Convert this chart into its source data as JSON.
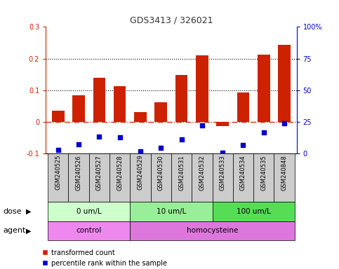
{
  "title": "GDS3413 / 326021",
  "samples": [
    "GSM240525",
    "GSM240526",
    "GSM240527",
    "GSM240528",
    "GSM240529",
    "GSM240530",
    "GSM240531",
    "GSM240532",
    "GSM240533",
    "GSM240534",
    "GSM240535",
    "GSM240848"
  ],
  "red_values": [
    0.035,
    0.083,
    0.14,
    0.113,
    0.03,
    0.062,
    0.148,
    0.21,
    -0.013,
    0.093,
    0.212,
    0.243
  ],
  "blue_values": [
    -0.09,
    -0.072,
    -0.046,
    -0.05,
    -0.094,
    -0.083,
    -0.056,
    -0.011,
    -0.097,
    -0.074,
    -0.033,
    -0.006
  ],
  "ylim_left": [
    -0.1,
    0.3
  ],
  "ylim_right": [
    0,
    100
  ],
  "yticks_left": [
    -0.1,
    0.0,
    0.1,
    0.2,
    0.3
  ],
  "yticks_right": [
    0,
    25,
    50,
    75,
    100
  ],
  "ytick_labels_left": [
    "-0.1",
    "0",
    "0.1",
    "0.2",
    "0.3"
  ],
  "ytick_labels_right": [
    "0",
    "25",
    "50",
    "75",
    "100%"
  ],
  "hlines": [
    0.1,
    0.2
  ],
  "dose_x_positions": [
    [
      0,
      4,
      "0 um/L",
      "#ccffcc"
    ],
    [
      4,
      8,
      "10 um/L",
      "#99ee99"
    ],
    [
      8,
      12,
      "100 um/L",
      "#55dd55"
    ]
  ],
  "agent_x_positions": [
    [
      0,
      4,
      "control",
      "#ee88ee"
    ],
    [
      4,
      12,
      "homocysteine",
      "#dd77dd"
    ]
  ],
  "bar_color": "#cc2200",
  "dot_color": "#0000cc",
  "zero_line_color": "#cc2200",
  "bg_color": "#ffffff",
  "sample_box_color": "#cccccc",
  "legend_red": "transformed count",
  "legend_blue": "percentile rank within the sample",
  "dose_label": "dose",
  "agent_label": "agent"
}
